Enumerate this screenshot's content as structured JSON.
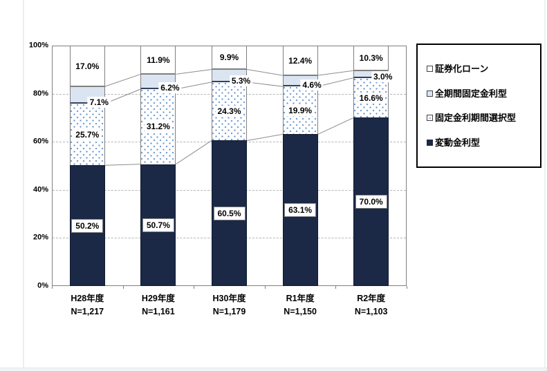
{
  "chart_data": {
    "type": "bar",
    "stacked": true,
    "title": "",
    "xlabel": "",
    "ylabel": "",
    "categories": [
      "H28年度",
      "H29年度",
      "H30年度",
      "R1年度",
      "R2年度"
    ],
    "category_sublabels": [
      "N=1,217",
      "N=1,161",
      "N=1,179",
      "N=1,150",
      "N=1,103"
    ],
    "series": [
      {
        "name": "変動金利型",
        "style": "navy",
        "values": [
          50.2,
          50.7,
          60.5,
          63.1,
          70.0
        ]
      },
      {
        "name": "固定金利期間選択型",
        "style": "dotted",
        "values": [
          25.7,
          31.2,
          24.3,
          19.9,
          16.6
        ]
      },
      {
        "name": "全期間固定金利型",
        "style": "lightblue",
        "values": [
          7.1,
          6.2,
          5.3,
          4.6,
          3.0
        ]
      },
      {
        "name": "証券化ローン",
        "style": "plain",
        "values": [
          17.0,
          11.9,
          9.9,
          12.4,
          10.3
        ]
      }
    ],
    "ylim": [
      0,
      100
    ],
    "yticks": [
      0,
      20,
      40,
      60,
      80,
      100
    ],
    "ytick_labels": [
      "0%",
      "20%",
      "40%",
      "60%",
      "80%",
      "100%"
    ],
    "grid": "horizontal-dashed",
    "series_connector_lines": true,
    "legend": {
      "position": "right",
      "items": [
        {
          "label": "証券化ローン",
          "style": "plain"
        },
        {
          "label": "全期間固定金利型",
          "style": "lightblue"
        },
        {
          "label": "固定金利期間選択型",
          "style": "dotted"
        },
        {
          "label": "変動金利型",
          "style": "navy"
        }
      ]
    },
    "colors": {
      "navy": "#1b2846",
      "navy_border": "#101c33",
      "lightblue": "#dbe5f1",
      "lightblue_bottom_border": "#33425c",
      "dot": "#6f9bd1",
      "bar_border": "#7f7f7f",
      "gridline": "#b3b3b3",
      "connector_line": "#8c8c8c",
      "plot_border": "#7f7f7f",
      "legend_border": "#000000",
      "text": "#000000",
      "label_background": "#ffffff"
    }
  }
}
